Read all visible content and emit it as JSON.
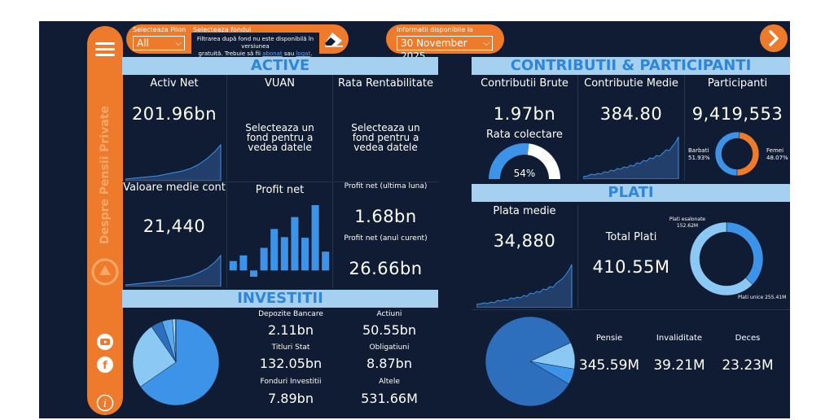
{
  "sidebar": {
    "brand_text": "Despre Pensii Private",
    "menu_icon": "hamburger-menu-icon",
    "youtube_icon": "youtube-icon",
    "facebook_icon": "facebook-icon",
    "info_icon": "info-icon"
  },
  "filters": {
    "pilon_label": "Selecteaza Pilon",
    "pilon_value": "All",
    "fond_label": "Selecteaza fondul",
    "tooltip_line1": "Filtrarea după fond nu este disponibilă în versiunea",
    "tooltip_line2_pre": "gratuită. Trebuie să fii ",
    "tooltip_link1": "abonat",
    "tooltip_mid": " sau ",
    "tooltip_link2": "logat",
    "tooltip_end": ".",
    "info_label": "Informatii disponibile la",
    "info_date": "30 November 2025"
  },
  "active": {
    "title": "ACTIVE",
    "activ_net_label": "Activ Net",
    "activ_net_value": "201.96bn",
    "vuan_label": "VUAN",
    "vuan_msg": "Selecteaza un fond pentru a vedea datele",
    "rata_label": "Rata Rentabilitate",
    "rata_msg": "Selecteaza un fond pentru a vedea datele",
    "valoare_label": "Valoare medie cont",
    "valoare_value": "21,440",
    "profit_label": "Profit net",
    "profit_luna_label": "Profit net (ultima luna)",
    "profit_luna_value": "1.68bn",
    "profit_an_label": "Profit net (anul curent)",
    "profit_an_value": "26.66bn"
  },
  "investitii": {
    "title": "INVESTITII",
    "items": [
      {
        "label": "Depozite Bancare",
        "value": "2.11bn"
      },
      {
        "label": "Actiuni",
        "value": "50.55bn"
      },
      {
        "label": "Titluri Stat",
        "value": "132.05bn"
      },
      {
        "label": "Obligatiuni",
        "value": "8.87bn"
      },
      {
        "label": "Fonduri Investitii",
        "value": "7.89bn"
      },
      {
        "label": "Altele",
        "value": "531.66M"
      }
    ]
  },
  "contributii": {
    "title": "CONTRIBUTII & PARTICIPANTI",
    "brute_label": "Contributii Brute",
    "brute_value": "1.97bn",
    "medie_label": "Contributie Medie",
    "medie_value": "384.80",
    "participanti_label": "Participanti",
    "participanti_value": "9,419,553",
    "rata_colectare_label": "Rata colectare",
    "rata_colectare_value": "54%",
    "barbati_label": "Barbati",
    "barbati_value": "51.93%",
    "femei_label": "Femei",
    "femei_value": "48.07%"
  },
  "plati": {
    "title": "PLATI",
    "plata_medie_label": "Plata medie",
    "plata_medie_value": "34,880",
    "total_label": "Total Plati",
    "total_value": "410.55M",
    "esalonate_label": "Plati esalonate",
    "esalonate_value": "152.62M",
    "unice_label": "Plati unice",
    "unice_value": "255.41M",
    "pensie_label": "Pensie",
    "pensie_value": "345.59M",
    "invaliditate_label": "Invaliditate",
    "invaliditate_value": "39.21M",
    "deces_label": "Deces",
    "deces_value": "23.23M"
  },
  "nav": {
    "next_icon": "chevron-right-icon"
  },
  "chart_data": [
    {
      "type": "bar",
      "title": "Profit net",
      "values": [
        1.5,
        2.4,
        -1.0,
        3.6,
        6.6,
        5.3,
        8.5,
        5.2,
        10.4,
        3.0
      ]
    },
    {
      "type": "pie",
      "title": "Rata colectare",
      "values": [
        54,
        46
      ]
    },
    {
      "type": "pie",
      "title": "Participanti",
      "series": [
        {
          "name": "Barbati",
          "value": 51.93
        },
        {
          "name": "Femei",
          "value": 48.07
        }
      ]
    },
    {
      "type": "pie",
      "title": "Total Plati",
      "series": [
        {
          "name": "Plati esalonate",
          "value": 152.62
        },
        {
          "name": "Plati unice",
          "value": 255.41
        }
      ]
    },
    {
      "type": "pie",
      "title": "Investitii",
      "series": [
        {
          "name": "Titluri Stat",
          "value": 132.05
        },
        {
          "name": "Actiuni",
          "value": 50.55
        },
        {
          "name": "Obligatiuni",
          "value": 8.87
        },
        {
          "name": "Fonduri Investitii",
          "value": 7.89
        },
        {
          "name": "Depozite Bancare",
          "value": 2.11
        },
        {
          "name": "Altele",
          "value": 0.53
        }
      ]
    },
    {
      "type": "pie",
      "title": "Plati",
      "series": [
        {
          "name": "Pensie",
          "value": 345.59
        },
        {
          "name": "Invaliditate",
          "value": 39.21
        },
        {
          "name": "Deces",
          "value": 23.23
        }
      ]
    }
  ],
  "colors": {
    "background": "#0f1c33",
    "orange": "#ee7b2c",
    "band": "#a6d0f0",
    "band_text": "#2f86d8",
    "blue": "#3d93e8",
    "light_blue": "#8cc8f4",
    "dark_blue": "#2e6fbd"
  }
}
